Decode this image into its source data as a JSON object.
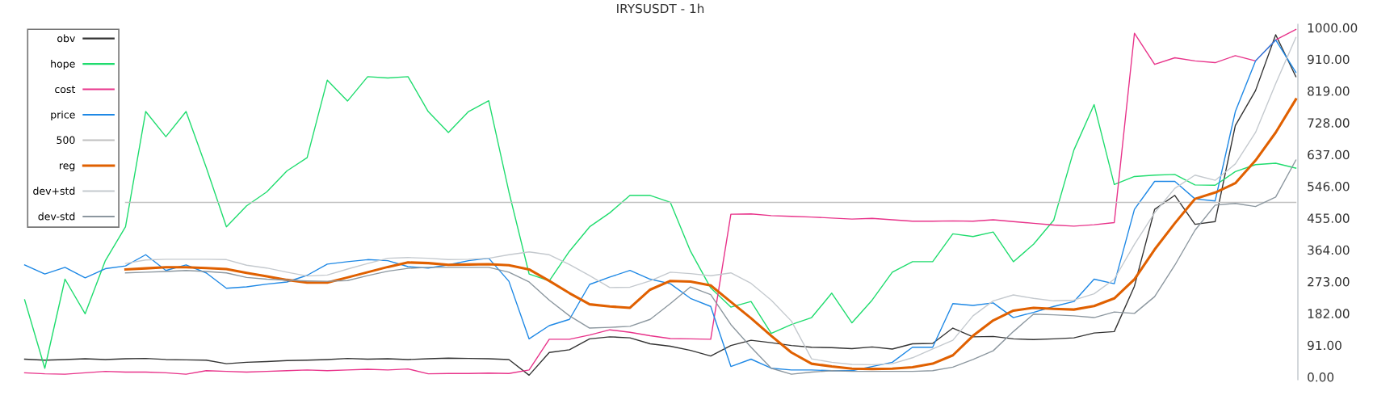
{
  "chart_data": {
    "type": "line",
    "title": "IRYSUSDT - 1h",
    "categories": [
      null,
      null,
      null,
      null,
      null,
      null,
      null,
      null,
      null,
      null,
      null,
      null,
      null,
      null,
      null,
      null,
      null,
      null,
      null,
      null,
      null,
      null,
      null,
      null,
      null,
      null,
      null,
      null,
      null,
      null,
      null,
      null,
      null,
      null,
      null,
      null,
      null,
      null,
      null,
      null,
      null,
      null,
      null,
      null,
      null,
      null,
      null,
      null,
      null,
      null,
      null,
      null,
      null,
      null,
      null,
      null,
      null,
      null,
      null,
      null,
      null,
      null,
      null,
      null
    ],
    "series": [
      {
        "name": "obv",
        "color": "#333333",
        "values": [
          51,
          48,
          50,
          52,
          50,
          52,
          53,
          50,
          49,
          48,
          38,
          42,
          44,
          47,
          48,
          50,
          53,
          51,
          52,
          50,
          52,
          54,
          53,
          52,
          50,
          5,
          70,
          78,
          109,
          115,
          112,
          95,
          88,
          76,
          60,
          90,
          105,
          98,
          90,
          85,
          84,
          81,
          86,
          80,
          95,
          96,
          140,
          115,
          116,
          109,
          107,
          109,
          112,
          126,
          130,
          260,
          480,
          520,
          437,
          445,
          720,
          820,
          980,
          860
        ]
      },
      {
        "name": "hope",
        "color": "#1fdc6e",
        "values": [
          221,
          25,
          280,
          181,
          333,
          430,
          760,
          688,
          760,
          600,
          430,
          490,
          530,
          590,
          628,
          850,
          790,
          860,
          856,
          860,
          760,
          700,
          760,
          791,
          530,
          295,
          275,
          360,
          430,
          470,
          520,
          520,
          500,
          360,
          255,
          200,
          216,
          125,
          150,
          170,
          240,
          155,
          220,
          300,
          330,
          330,
          410,
          402,
          415,
          330,
          380,
          449,
          650,
          780,
          551,
          574,
          578,
          580,
          550,
          549,
          588,
          608,
          612,
          598
        ]
      },
      {
        "name": "cost",
        "color": "#e8338a",
        "values": [
          12,
          9,
          8,
          12,
          16,
          14,
          14,
          12,
          8,
          18,
          16,
          14,
          16,
          18,
          20,
          18,
          20,
          22,
          20,
          23,
          9,
          10,
          10,
          11,
          10,
          20,
          108,
          108,
          120,
          135,
          128,
          118,
          110,
          109,
          108,
          466,
          467,
          462,
          460,
          458,
          455,
          452,
          454,
          450,
          446,
          446,
          447,
          446,
          450,
          445,
          440,
          435,
          432,
          436,
          442,
          984,
          895,
          914,
          905,
          900,
          920,
          905,
          965,
          995
        ]
      },
      {
        "name": "price",
        "color": "#1e88e5",
        "values": [
          321,
          295,
          314,
          284,
          310,
          318,
          350,
          305,
          321,
          298,
          254,
          258,
          266,
          272,
          291,
          323,
          330,
          336,
          333,
          316,
          312,
          321,
          333,
          340,
          274,
          109,
          147,
          165,
          265,
          286,
          305,
          280,
          267,
          225,
          202,
          30,
          51,
          25,
          20,
          20,
          18,
          18,
          30,
          42,
          85,
          85,
          210,
          205,
          212,
          170,
          185,
          202,
          216,
          280,
          267,
          480,
          560,
          560,
          510,
          504,
          760,
          905,
          965,
          872
        ]
      },
      {
        "name": "500",
        "color": "#c0c0c0",
        "values": [
          null,
          null,
          null,
          null,
          null,
          500,
          500,
          500,
          500,
          500,
          500,
          500,
          500,
          500,
          500,
          500,
          500,
          500,
          500,
          500,
          500,
          500,
          500,
          500,
          500,
          500,
          500,
          500,
          500,
          500,
          500,
          500,
          500,
          500,
          500,
          500,
          500,
          500,
          500,
          500,
          500,
          500,
          500,
          500,
          500,
          500,
          500,
          500,
          500,
          500,
          500,
          500,
          500,
          500,
          500,
          500,
          500,
          500,
          500,
          500,
          500,
          500,
          500,
          500
        ]
      },
      {
        "name": "reg",
        "color": "#e06000",
        "values": [
          null,
          null,
          null,
          null,
          null,
          308,
          311,
          314,
          314,
          312,
          309,
          298,
          288,
          278,
          270,
          270,
          285,
          300,
          315,
          328,
          326,
          321,
          322,
          323,
          320,
          308,
          275,
          240,
          208,
          202,
          198,
          250,
          275,
          273,
          262,
          215,
          168,
          118,
          70,
          38,
          30,
          24,
          23,
          24,
          28,
          38,
          62,
          118,
          162,
          190,
          198,
          195,
          193,
          203,
          225,
          280,
          365,
          440,
          510,
          528,
          555,
          620,
          700,
          795
        ]
      },
      {
        "name": "dev+std",
        "color": "#c4c9ce",
        "values": [
          null,
          null,
          null,
          null,
          null,
          325,
          335,
          337,
          337,
          337,
          336,
          320,
          312,
          300,
          289,
          292,
          309,
          325,
          340,
          342,
          340,
          336,
          337,
          340,
          350,
          358,
          350,
          322,
          290,
          256,
          257,
          275,
          300,
          296,
          290,
          298,
          268,
          220,
          160,
          52,
          42,
          36,
          35,
          38,
          55,
          80,
          105,
          175,
          218,
          235,
          225,
          218,
          220,
          238,
          280,
          380,
          470,
          540,
          578,
          563,
          610,
          700,
          840,
          972
        ]
      },
      {
        "name": "dev-std",
        "color": "#8c979f",
        "values": [
          null,
          null,
          null,
          null,
          null,
          298,
          300,
          302,
          305,
          302,
          298,
          285,
          280,
          277,
          275,
          274,
          276,
          290,
          303,
          311,
          314,
          314,
          314,
          314,
          300,
          272,
          220,
          175,
          140,
          142,
          145,
          165,
          210,
          258,
          236,
          150,
          85,
          25,
          8,
          14,
          18,
          16,
          16,
          16,
          16,
          18,
          28,
          50,
          75,
          130,
          180,
          178,
          175,
          170,
          186,
          182,
          230,
          320,
          420,
          492,
          497,
          488,
          515,
          621
        ]
      }
    ],
    "ylim": [
      -8,
      1010
    ],
    "yticks": [
      {
        "value": 0,
        "label": "0.00"
      },
      {
        "value": 91,
        "label": "91.00"
      },
      {
        "value": 182,
        "label": "182.00"
      },
      {
        "value": 273,
        "label": "273.00"
      },
      {
        "value": 364,
        "label": "364.00"
      },
      {
        "value": 455,
        "label": "455.00"
      },
      {
        "value": 546,
        "label": "546.00"
      },
      {
        "value": 637,
        "label": "637.00"
      },
      {
        "value": 728,
        "label": "728.00"
      },
      {
        "value": 819,
        "label": "819.00"
      },
      {
        "value": 910,
        "label": "910.00"
      },
      {
        "value": 1000,
        "label": "1000.00"
      }
    ],
    "grid": false,
    "legend": "top left",
    "marker": "none",
    "line_style": "solid"
  }
}
